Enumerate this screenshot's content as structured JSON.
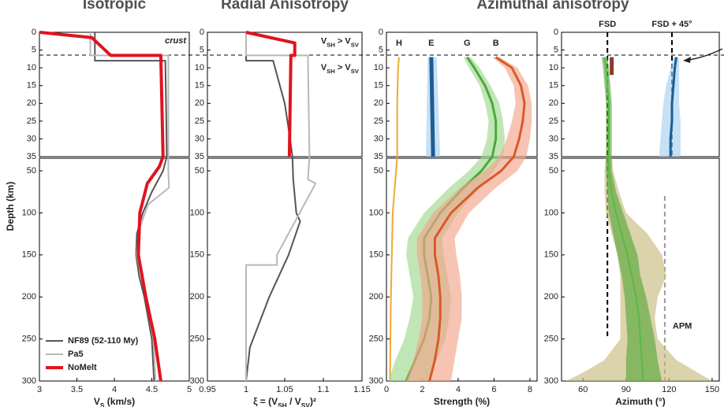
{
  "chart_data": [
    {
      "type": "depth-profile",
      "title": "Isotropic",
      "y_label": "Depth (km)",
      "x_label": [
        "V",
        "S",
        " (km/s)"
      ],
      "xlim": [
        3,
        5
      ],
      "xticks": [
        3,
        3.5,
        4,
        4.5,
        5
      ],
      "depth_axes": [
        {
          "ylim": [
            0,
            35
          ],
          "yticks": [
            0,
            5,
            10,
            15,
            20,
            25,
            30,
            35
          ]
        },
        {
          "ylim": [
            35,
            300
          ],
          "yticks": [
            50,
            100,
            150,
            200,
            250,
            300
          ]
        }
      ],
      "legend": "lower left",
      "annotations": [
        {
          "text": "crust",
          "depth": 2.5
        }
      ],
      "series": [
        {
          "name": "NF89 (52-110 My)",
          "color": "#555555",
          "width": 2,
          "depth": [
            0,
            8,
            8,
            20,
            35,
            50,
            75,
            100,
            125,
            150,
            175,
            200,
            250,
            300
          ],
          "values": [
            3.74,
            3.74,
            4.68,
            4.69,
            4.7,
            4.65,
            4.5,
            4.38,
            4.3,
            4.29,
            4.33,
            4.4,
            4.5,
            4.53
          ]
        },
        {
          "name": "Pa5",
          "color": "#b8b8b8",
          "width": 2,
          "depth": [
            0,
            6.5,
            6.5,
            35,
            50,
            70,
            90,
            120,
            150,
            200,
            250,
            300
          ],
          "values": [
            3.68,
            3.68,
            4.72,
            4.72,
            4.72,
            4.73,
            4.45,
            4.33,
            4.3,
            4.42,
            4.52,
            4.55
          ]
        },
        {
          "name": "NoMelt",
          "color": "#e0141e",
          "width": 4,
          "depth": [
            0,
            1.5,
            3.5,
            6.5,
            6.5,
            35,
            45,
            65,
            100,
            150,
            200,
            250,
            300
          ],
          "values": [
            3.0,
            3.7,
            3.8,
            3.95,
            4.62,
            4.65,
            4.6,
            4.44,
            4.34,
            4.32,
            4.42,
            4.54,
            4.62
          ]
        }
      ]
    },
    {
      "type": "depth-profile",
      "title": "Radial Anisotropy",
      "x_label": [
        "ξ = (V",
        "SH",
        " / V",
        "SV",
        ")²"
      ],
      "xlim": [
        0.95,
        1.15
      ],
      "xticks": [
        0.95,
        1,
        1.05,
        1.1,
        1.15
      ],
      "depth_axes": [
        {
          "ylim": [
            0,
            35
          ],
          "yticks": [
            0,
            5,
            10,
            15,
            20,
            25,
            30,
            35
          ]
        },
        {
          "ylim": [
            35,
            300
          ],
          "yticks": [
            50,
            100,
            150,
            200,
            250,
            300
          ]
        }
      ],
      "annotations": [
        {
          "text": [
            "V",
            "SH",
            " > V",
            "SV"
          ],
          "depth": 2.5
        },
        {
          "text": [
            "V",
            "SH",
            " > V",
            "SV"
          ],
          "depth": 10
        }
      ],
      "series": [
        {
          "color": "#555555",
          "width": 2,
          "depth": [
            0,
            8,
            8,
            12,
            20,
            30,
            35,
            60,
            100,
            110,
            150,
            200,
            260,
            300
          ],
          "values": [
            1.0,
            1.0,
            1.035,
            1.04,
            1.05,
            1.057,
            1.06,
            1.061,
            1.065,
            1.07,
            1.055,
            1.03,
            1.005,
            1.0
          ]
        },
        {
          "color": "#b8b8b8",
          "width": 2,
          "depth": [
            0,
            6.5,
            6.5,
            35,
            60,
            65,
            150,
            162,
            162,
            300
          ],
          "values": [
            1.0,
            1.0,
            1.08,
            1.082,
            1.08,
            1.09,
            1.04,
            1.04,
            1.0,
            1.0
          ]
        },
        {
          "color": "#e0141e",
          "width": 4,
          "depth": [
            0,
            3,
            6.5,
            6.5,
            35
          ],
          "values": [
            1.0,
            1.063,
            1.063,
            1.058,
            1.056
          ]
        }
      ]
    },
    {
      "type": "depth-profile",
      "title": "Azimuthal anisotropy",
      "x_label": [
        "Strength (%)"
      ],
      "xlim": [
        0,
        8.4
      ],
      "xticks": [
        0,
        2,
        4,
        6,
        8
      ],
      "depth_axes": [
        {
          "ylim": [
            0,
            35
          ],
          "yticks": [
            0,
            5,
            10,
            15,
            20,
            25,
            30,
            35
          ]
        },
        {
          "ylim": [
            35,
            300
          ],
          "yticks": [
            50,
            100,
            150,
            200,
            250,
            300
          ]
        }
      ],
      "series_labels": true,
      "series": [
        {
          "name": "H",
          "color": "#f0a830",
          "width": 2,
          "depth": [
            7,
            10,
            20,
            35,
            60,
            100,
            150,
            200,
            250,
            300
          ],
          "values": [
            0.7,
            0.65,
            0.6,
            0.6,
            0.5,
            0.35,
            0.3,
            0.25,
            0.22,
            0.2
          ]
        },
        {
          "name": "E",
          "color": "#2a7fc8",
          "line_color": "#1d5d94",
          "band_color": "#a8d0ee",
          "width": 5,
          "depth": [
            7,
            35
          ],
          "values": [
            2.5,
            2.6
          ],
          "lower": [
            2.3,
            2.2
          ],
          "upper": [
            2.8,
            3.0
          ]
        },
        {
          "name": "G",
          "color": "#4aaa3a",
          "band_color": "#9fd88f",
          "width": 3,
          "depth": [
            7,
            10,
            15,
            20,
            25,
            30,
            35,
            50,
            70,
            100,
            130,
            150,
            175,
            200,
            225,
            250,
            275,
            300
          ],
          "values": [
            4.5,
            4.9,
            5.5,
            5.9,
            6.1,
            6.1,
            5.9,
            5.3,
            4.3,
            3.0,
            2.1,
            2.1,
            2.3,
            2.5,
            2.4,
            2.1,
            1.6,
            1.1
          ],
          "lower": [
            4.3,
            4.6,
            5.2,
            5.5,
            5.7,
            5.6,
            5.3,
            4.6,
            3.5,
            2.1,
            1.2,
            1.1,
            1.3,
            1.5,
            1.3,
            1.0,
            0.5,
            0.1
          ],
          "upper": [
            4.7,
            5.2,
            5.8,
            6.3,
            6.5,
            6.6,
            6.5,
            6.0,
            5.2,
            4.0,
            3.1,
            3.2,
            3.4,
            3.6,
            3.5,
            3.3,
            2.8,
            2.3
          ]
        },
        {
          "name": "B",
          "color": "#d85a2a",
          "band_color": "#f3a58a",
          "width": 3,
          "depth": [
            7,
            10,
            15,
            20,
            25,
            30,
            35,
            50,
            70,
            100,
            130,
            150,
            175,
            200,
            225,
            250,
            275,
            300
          ],
          "values": [
            6.1,
            7.0,
            7.5,
            7.7,
            7.6,
            7.4,
            7.1,
            6.4,
            5.1,
            3.6,
            2.7,
            2.7,
            2.9,
            3.0,
            3.0,
            2.9,
            2.7,
            2.4
          ],
          "lower": [
            5.9,
            6.6,
            7.1,
            7.2,
            7.0,
            6.7,
            6.3,
            5.5,
            4.1,
            2.6,
            1.7,
            1.7,
            1.9,
            2.0,
            2.0,
            1.8,
            1.5,
            1.1
          ],
          "upper": [
            6.3,
            7.3,
            7.9,
            8.1,
            8.1,
            8.0,
            7.8,
            7.3,
            6.1,
            4.6,
            3.8,
            3.9,
            4.1,
            4.2,
            4.2,
            4.0,
            3.8,
            3.6
          ]
        }
      ]
    },
    {
      "type": "depth-profile",
      "x_label": [
        "Azimuth (°)"
      ],
      "xlim": [
        45,
        155
      ],
      "xticks": [
        60,
        90,
        120,
        150
      ],
      "depth_axes": [
        {
          "ylim": [
            0,
            35
          ],
          "yticks": [
            0,
            5,
            10,
            15,
            20,
            25,
            30,
            35
          ]
        },
        {
          "ylim": [
            35,
            300
          ],
          "yticks": [
            50,
            100,
            150,
            200,
            250,
            300
          ]
        }
      ],
      "reference_lines": [
        {
          "label": "FSD",
          "value": 77,
          "depth": [
            0,
            247
          ],
          "color": "#000000"
        },
        {
          "label": "FSD + 45°",
          "value": 122,
          "depth": [
            0,
            35
          ],
          "color": "#000000"
        },
        {
          "label": "APM",
          "value": 117,
          "depth": [
            80,
            300
          ],
          "color": "#9a9a9a"
        }
      ],
      "series": [
        {
          "band_color": "#c8bb80",
          "depth": [
            35,
            50,
            75,
            100,
            125,
            150,
            175,
            200,
            225,
            250,
            275,
            290,
            300
          ],
          "lower": [
            76,
            75,
            75,
            76,
            80,
            84,
            86,
            86,
            86,
            86,
            75,
            60,
            48
          ],
          "upper": [
            80,
            81,
            85,
            90,
            105,
            115,
            118,
            112,
            110,
            112,
            125,
            140,
            150
          ]
        },
        {
          "color": "#5cb848",
          "band_color": "#5aa83a",
          "width": 2,
          "depth": [
            7,
            10,
            15,
            20,
            25,
            30,
            35,
            50,
            75,
            100,
            125,
            150,
            175,
            200,
            225,
            250,
            275,
            300
          ],
          "values": [
            75,
            76,
            77,
            78,
            78,
            78,
            78,
            78,
            80,
            83,
            87,
            91,
            94,
            97,
            99,
            100,
            101,
            102
          ],
          "lower": [
            73,
            74,
            75,
            76,
            76,
            76,
            76,
            76,
            77,
            78,
            81,
            84,
            87,
            89,
            90,
            91,
            90,
            90
          ],
          "upper": [
            77,
            78,
            79,
            80,
            80,
            80,
            80,
            80,
            83,
            88,
            93,
            98,
            100,
            104,
            107,
            110,
            112,
            115
          ]
        },
        {
          "color": "#1d5d94",
          "band_color": "#a8d0ee",
          "width": 3,
          "depth": [
            7,
            10,
            15,
            20,
            25,
            30,
            35
          ],
          "values": [
            125,
            124,
            123,
            122,
            122,
            121,
            121
          ],
          "lower": [
            123,
            121,
            118,
            116,
            115,
            114,
            113
          ],
          "upper": [
            127,
            127,
            127,
            127,
            128,
            128,
            128
          ]
        },
        {
          "color": "#8a3a2a",
          "width": 5,
          "depth": [
            7,
            12
          ],
          "values": [
            80,
            80
          ]
        }
      ]
    }
  ]
}
